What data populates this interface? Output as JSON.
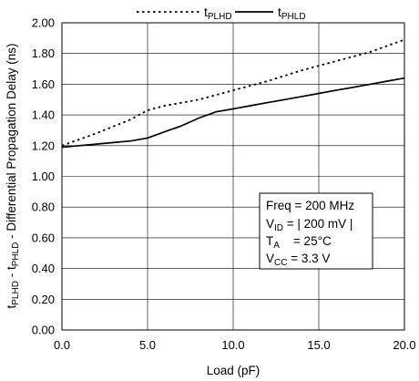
{
  "chart_data": {
    "type": "line",
    "xlabel": "Load (pF)",
    "ylabel": {
      "t1": "t",
      "t1_sub": "PLHD",
      "sep": " - t",
      "t2_sub": "PHLD",
      "rest": " - Differential Propagation Delay (ns)"
    },
    "xlim": [
      0,
      20
    ],
    "ylim": [
      0,
      2.0
    ],
    "x_ticks": [
      "0.0",
      "5.0",
      "10.0",
      "15.0",
      "20.0"
    ],
    "y_ticks": [
      "0.00",
      "0.20",
      "0.40",
      "0.60",
      "0.80",
      "1.00",
      "1.20",
      "1.40",
      "1.60",
      "1.80",
      "2.00"
    ],
    "grid": true,
    "legend_position": "top",
    "series": [
      {
        "name": "tPLHD",
        "name_main": "t",
        "name_sub": "PLHD",
        "style": "dotted",
        "x": [
          0,
          2,
          4,
          5,
          6,
          8,
          10,
          12,
          14,
          16,
          18,
          20
        ],
        "y": [
          1.2,
          1.28,
          1.37,
          1.43,
          1.46,
          1.5,
          1.56,
          1.62,
          1.69,
          1.75,
          1.81,
          1.89
        ]
      },
      {
        "name": "tPHLD",
        "name_main": "t",
        "name_sub": "PHLD",
        "style": "solid",
        "x": [
          0,
          1,
          2,
          3,
          4,
          5,
          6,
          7,
          8,
          9,
          10,
          11,
          12,
          13,
          14,
          15,
          16,
          17,
          18,
          19,
          20
        ],
        "y": [
          1.19,
          1.2,
          1.21,
          1.22,
          1.23,
          1.25,
          1.29,
          1.33,
          1.38,
          1.42,
          1.44,
          1.46,
          1.48,
          1.5,
          1.52,
          1.54,
          1.56,
          1.58,
          1.6,
          1.62,
          1.64
        ]
      }
    ],
    "annotation": {
      "freq": "Freq = 200 MHz",
      "vid_main": "V",
      "vid_sub": "ID",
      "vid_value": " = | 200 mV |",
      "ta_main": "T",
      "ta_sub": "A",
      "ta_value": "    = 25°C",
      "vcc_main": "V",
      "vcc_sub": "CC",
      "vcc_value": " = 3.3 V"
    }
  }
}
